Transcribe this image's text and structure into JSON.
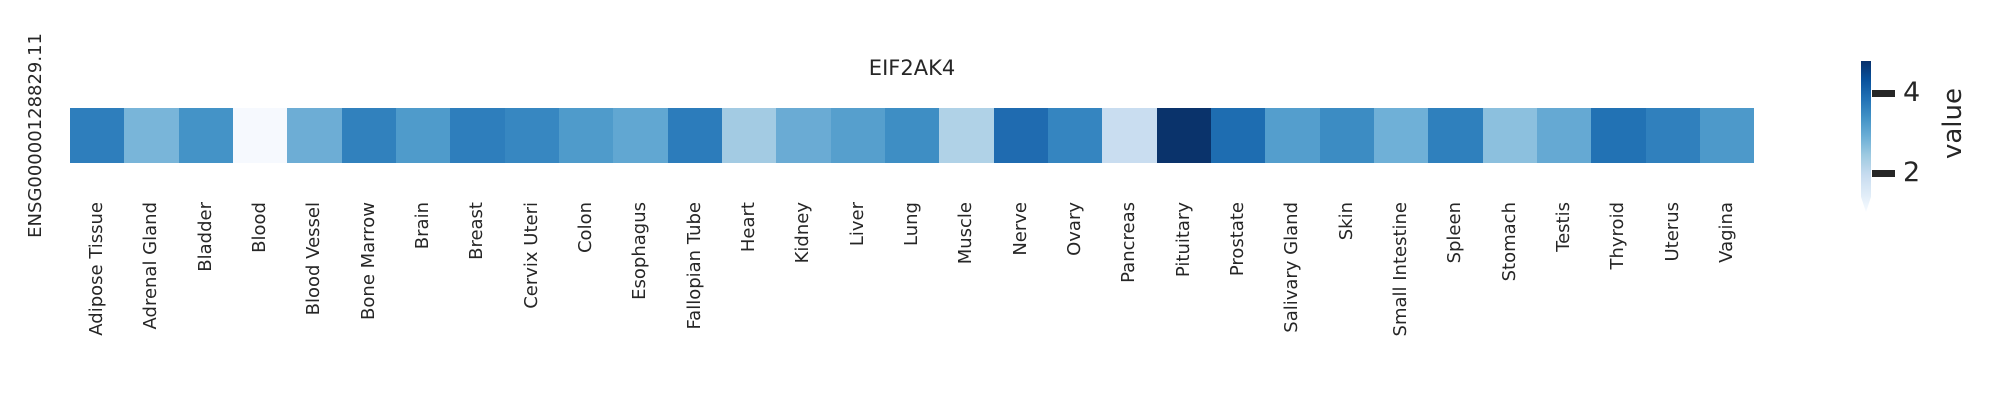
{
  "figure": {
    "title": "EIF2AK4",
    "row_label": "ENSG00000128829.11"
  },
  "colorbar": {
    "label": "value",
    "tick_labels": [
      "4",
      "2"
    ],
    "tick_values": [
      4,
      2
    ],
    "gradient_top_color": "#08306b",
    "gradient_bottom_color": "#f7fbff"
  },
  "chart_data": {
    "type": "heatmap",
    "title": "EIF2AK4",
    "row_label": "ENSG00000128829.11",
    "value_label": "value",
    "colormap": "Blues",
    "legend_position": "right",
    "colorbar_ticks": [
      2,
      4
    ],
    "value_range": [
      1.2,
      4.8
    ],
    "categories": [
      "Adipose Tissue",
      "Adrenal Gland",
      "Bladder",
      "Blood",
      "Blood Vessel",
      "Bone Marrow",
      "Brain",
      "Breast",
      "Cervix Uteri",
      "Colon",
      "Esophagus",
      "Fallopian Tube",
      "Heart",
      "Kidney",
      "Liver",
      "Lung",
      "Muscle",
      "Nerve",
      "Ovary",
      "Pancreas",
      "Pituitary",
      "Prostate",
      "Salivary Gland",
      "Skin",
      "Small Intestine",
      "Spleen",
      "Stomach",
      "Testis",
      "Thyroid",
      "Uterus",
      "Vagina"
    ],
    "values": [
      3.7,
      2.8,
      3.4,
      1.2,
      3.0,
      3.65,
      3.3,
      3.7,
      3.6,
      3.3,
      3.1,
      3.7,
      2.5,
      3.0,
      3.2,
      3.5,
      2.4,
      4.0,
      3.6,
      2.0,
      4.8,
      3.95,
      3.2,
      3.5,
      3.0,
      3.65,
      2.7,
      3.1,
      3.85,
      3.65,
      3.3
    ],
    "cell_colors": [
      "#2e7ebc",
      "#79b5d9",
      "#4493c7",
      "#f6f9fe",
      "#6dadd5",
      "#3181bd",
      "#4f9bcb",
      "#2e7ebc",
      "#3787c1",
      "#4f9bcb",
      "#61a7d2",
      "#2c7cbb",
      "#a3cbe3",
      "#6aabd4",
      "#569fcd",
      "#3e8ec4",
      "#b0d2e7",
      "#1f6bb0",
      "#3585c0",
      "#c9ddf0",
      "#0a336b",
      "#1e6db1",
      "#549ecd",
      "#3c8cc3",
      "#6fb0d7",
      "#2f80bd",
      "#8cc0de",
      "#65a9d3",
      "#2272b4",
      "#3080bd",
      "#4d99ca"
    ]
  }
}
